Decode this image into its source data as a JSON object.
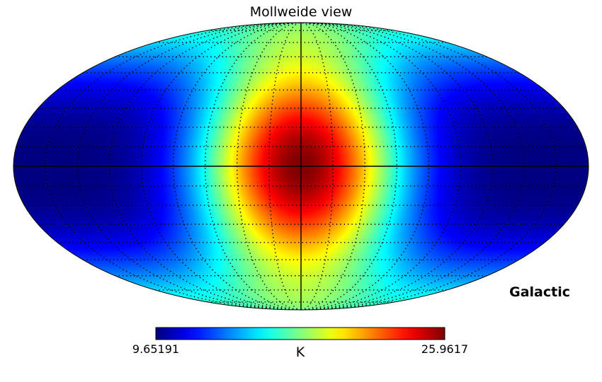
{
  "chart_data": {
    "type": "heatmap",
    "projection": "mollweide",
    "title": "Mollweide view",
    "coord_label": "Galactic",
    "colorbar": {
      "min": 9.65191,
      "max": 25.9617,
      "min_label": "9.65191",
      "max_label": "25.9617",
      "unit": "K",
      "colormap": "jet"
    },
    "graticule": {
      "shown": true,
      "lat_step_deg": 10,
      "lon_step_deg": 20,
      "style": "dotted"
    },
    "axes_lines": [
      "equator",
      "central-meridian"
    ],
    "field_description_values": {
      "center_value": 25.9617,
      "poles_value": 17.8,
      "edge_midlat_value": 9.65191
    }
  }
}
